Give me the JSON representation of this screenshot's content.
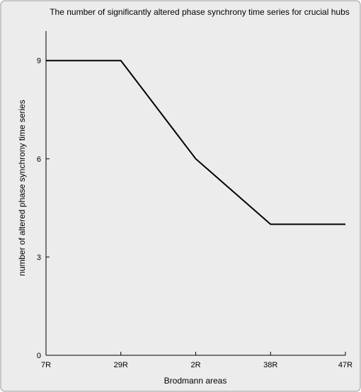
{
  "chart_data": {
    "type": "line",
    "title": "The number of significantly altered phase synchrony time series for crucial hubs",
    "xlabel": "Brodmann areas",
    "ylabel": "number of altered phase synchrony time series",
    "categories": [
      "7R",
      "29R",
      "2R",
      "38R",
      "47R"
    ],
    "series": [
      {
        "values": [
          9,
          9,
          6,
          4,
          4
        ]
      }
    ],
    "ylim": [
      0,
      9.9
    ],
    "yticks": [
      0,
      3,
      6,
      9
    ],
    "grid": false,
    "legend": "none",
    "colors": {
      "background": "#ececec",
      "line": "#000000",
      "axis": "#000000",
      "frame": "#9a9a9a"
    }
  }
}
